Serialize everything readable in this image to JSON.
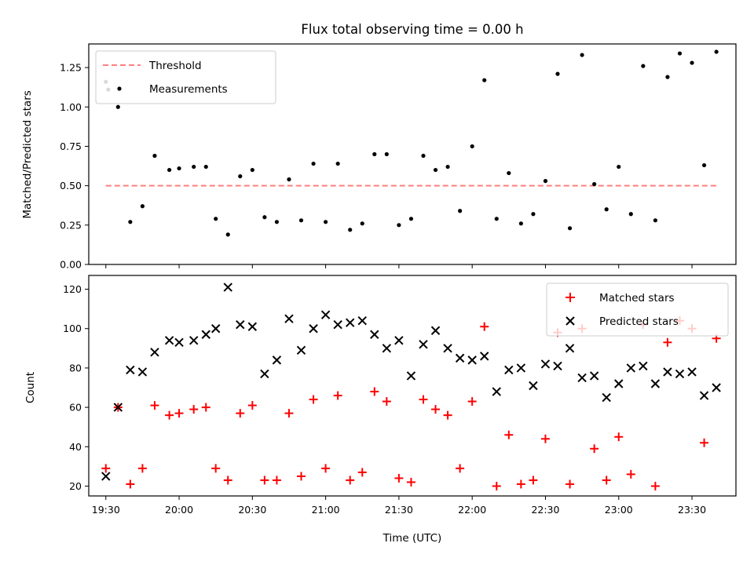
{
  "title": "Flux total observing time = 0.00 h",
  "colors": {
    "threshold": "#ff7f7f",
    "measurement": "#000000",
    "matched": "#ff0000",
    "predicted": "#000000"
  },
  "chart_data": [
    {
      "type": "scatter",
      "ylabel": "Matched/Predicted stars",
      "ylim": [
        0,
        1.4
      ],
      "yticks": [
        "0.00",
        "0.25",
        "0.50",
        "0.75",
        "1.00",
        "1.25"
      ],
      "ytick_values": [
        0,
        0.25,
        0.5,
        0.75,
        1.0,
        1.25
      ],
      "legend_position": "upper-left",
      "threshold": {
        "name": "Threshold",
        "value": 0.5,
        "x_range": [
          "19:30",
          "23:40"
        ]
      },
      "series": [
        {
          "name": "Measurements",
          "points": [
            [
              "19:30",
              1.16
            ],
            [
              "19:31",
              1.11
            ],
            [
              "19:35",
              1.0
            ],
            [
              "19:40",
              0.27
            ],
            [
              "19:45",
              0.37
            ],
            [
              "19:50",
              0.69
            ],
            [
              "19:56",
              0.6
            ],
            [
              "20:00",
              0.61
            ],
            [
              "20:06",
              0.62
            ],
            [
              "20:11",
              0.62
            ],
            [
              "20:15",
              0.29
            ],
            [
              "20:20",
              0.19
            ],
            [
              "20:25",
              0.56
            ],
            [
              "20:30",
              0.6
            ],
            [
              "20:35",
              0.3
            ],
            [
              "20:40",
              0.27
            ],
            [
              "20:45",
              0.54
            ],
            [
              "20:50",
              0.28
            ],
            [
              "20:55",
              0.64
            ],
            [
              "21:00",
              0.27
            ],
            [
              "21:05",
              0.64
            ],
            [
              "21:10",
              0.22
            ],
            [
              "21:15",
              0.26
            ],
            [
              "21:20",
              0.7
            ],
            [
              "21:25",
              0.7
            ],
            [
              "21:30",
              0.25
            ],
            [
              "21:35",
              0.29
            ],
            [
              "21:40",
              0.69
            ],
            [
              "21:45",
              0.6
            ],
            [
              "21:50",
              0.62
            ],
            [
              "21:55",
              0.34
            ],
            [
              "22:00",
              0.75
            ],
            [
              "22:05",
              1.17
            ],
            [
              "22:10",
              0.29
            ],
            [
              "22:15",
              0.58
            ],
            [
              "22:20",
              0.26
            ],
            [
              "22:25",
              0.32
            ],
            [
              "22:30",
              0.53
            ],
            [
              "22:35",
              1.21
            ],
            [
              "22:40",
              0.23
            ],
            [
              "22:45",
              1.33
            ],
            [
              "22:50",
              0.51
            ],
            [
              "22:55",
              0.35
            ],
            [
              "23:00",
              0.62
            ],
            [
              "23:05",
              0.32
            ],
            [
              "23:10",
              1.26
            ],
            [
              "23:15",
              0.28
            ],
            [
              "23:20",
              1.19
            ],
            [
              "23:25",
              1.34
            ],
            [
              "23:30",
              1.28
            ],
            [
              "23:35",
              0.63
            ],
            [
              "23:40",
              1.35
            ]
          ]
        }
      ]
    },
    {
      "type": "scatter",
      "xlabel": "Time (UTC)",
      "ylabel": "Count",
      "ylim": [
        15,
        127
      ],
      "yticks": [
        "20",
        "40",
        "60",
        "80",
        "100",
        "120"
      ],
      "ytick_values": [
        20,
        40,
        60,
        80,
        100,
        120
      ],
      "xlim": [
        "19:23",
        "23:48"
      ],
      "xticks": [
        "19:30",
        "20:00",
        "20:30",
        "21:00",
        "21:30",
        "22:00",
        "22:30",
        "23:00",
        "23:30"
      ],
      "legend_position": "upper-right",
      "series": [
        {
          "name": "Matched stars",
          "marker": "plus",
          "points": [
            [
              "19:30",
              29
            ],
            [
              "19:35",
              60
            ],
            [
              "19:40",
              21
            ],
            [
              "19:45",
              29
            ],
            [
              "19:50",
              61
            ],
            [
              "19:56",
              56
            ],
            [
              "20:00",
              57
            ],
            [
              "20:06",
              59
            ],
            [
              "20:11",
              60
            ],
            [
              "20:15",
              29
            ],
            [
              "20:20",
              23
            ],
            [
              "20:25",
              57
            ],
            [
              "20:30",
              61
            ],
            [
              "20:35",
              23
            ],
            [
              "20:40",
              23
            ],
            [
              "20:45",
              57
            ],
            [
              "20:50",
              25
            ],
            [
              "20:55",
              64
            ],
            [
              "21:00",
              29
            ],
            [
              "21:05",
              66
            ],
            [
              "21:10",
              23
            ],
            [
              "21:15",
              27
            ],
            [
              "21:20",
              68
            ],
            [
              "21:25",
              63
            ],
            [
              "21:30",
              24
            ],
            [
              "21:35",
              22
            ],
            [
              "21:40",
              64
            ],
            [
              "21:45",
              59
            ],
            [
              "21:50",
              56
            ],
            [
              "21:55",
              29
            ],
            [
              "22:00",
              63
            ],
            [
              "22:05",
              101
            ],
            [
              "22:10",
              20
            ],
            [
              "22:15",
              46
            ],
            [
              "22:20",
              21
            ],
            [
              "22:25",
              23
            ],
            [
              "22:30",
              44
            ],
            [
              "22:35",
              98
            ],
            [
              "22:40",
              21
            ],
            [
              "22:45",
              100
            ],
            [
              "22:50",
              39
            ],
            [
              "22:55",
              23
            ],
            [
              "23:00",
              45
            ],
            [
              "23:05",
              26
            ],
            [
              "23:10",
              102
            ],
            [
              "23:15",
              20
            ],
            [
              "23:20",
              93
            ],
            [
              "23:25",
              104
            ],
            [
              "23:30",
              100
            ],
            [
              "23:35",
              42
            ],
            [
              "23:40",
              95
            ]
          ]
        },
        {
          "name": "Predicted stars",
          "marker": "x",
          "points": [
            [
              "19:30",
              25
            ],
            [
              "19:35",
              60
            ],
            [
              "19:40",
              79
            ],
            [
              "19:45",
              78
            ],
            [
              "19:50",
              88
            ],
            [
              "19:56",
              94
            ],
            [
              "20:00",
              93
            ],
            [
              "20:06",
              94
            ],
            [
              "20:11",
              97
            ],
            [
              "20:15",
              100
            ],
            [
              "20:20",
              121
            ],
            [
              "20:25",
              102
            ],
            [
              "20:30",
              101
            ],
            [
              "20:35",
              77
            ],
            [
              "20:40",
              84
            ],
            [
              "20:45",
              105
            ],
            [
              "20:50",
              89
            ],
            [
              "20:55",
              100
            ],
            [
              "21:00",
              107
            ],
            [
              "21:05",
              102
            ],
            [
              "21:10",
              103
            ],
            [
              "21:15",
              104
            ],
            [
              "21:20",
              97
            ],
            [
              "21:25",
              90
            ],
            [
              "21:30",
              94
            ],
            [
              "21:35",
              76
            ],
            [
              "21:40",
              92
            ],
            [
              "21:45",
              99
            ],
            [
              "21:50",
              90
            ],
            [
              "21:55",
              85
            ],
            [
              "22:00",
              84
            ],
            [
              "22:05",
              86
            ],
            [
              "22:10",
              68
            ],
            [
              "22:15",
              79
            ],
            [
              "22:20",
              80
            ],
            [
              "22:25",
              71
            ],
            [
              "22:30",
              82
            ],
            [
              "22:35",
              81
            ],
            [
              "22:40",
              90
            ],
            [
              "22:45",
              75
            ],
            [
              "22:50",
              76
            ],
            [
              "22:55",
              65
            ],
            [
              "23:00",
              72
            ],
            [
              "23:05",
              80
            ],
            [
              "23:10",
              81
            ],
            [
              "23:15",
              72
            ],
            [
              "23:20",
              78
            ],
            [
              "23:25",
              77
            ],
            [
              "23:30",
              78
            ],
            [
              "23:35",
              66
            ],
            [
              "23:40",
              70
            ]
          ]
        }
      ]
    }
  ]
}
